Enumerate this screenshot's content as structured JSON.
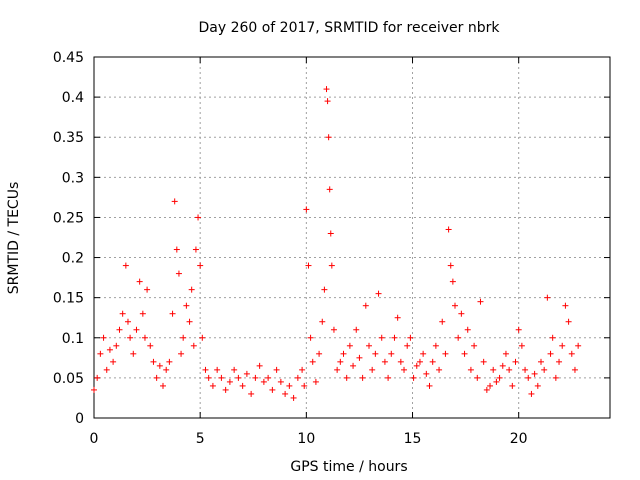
{
  "chart_data": {
    "type": "scatter",
    "title": "Day 260 of 2017, SRMTID for receiver nbrk",
    "xlabel": "GPS time / hours",
    "ylabel": "SRMTID / TECUs",
    "xlim": [
      0,
      24.3
    ],
    "ylim": [
      0,
      0.45
    ],
    "x_ticks": [
      0,
      5,
      10,
      15,
      20
    ],
    "x_tick_labels": [
      "0",
      "5",
      "10",
      "15",
      "20"
    ],
    "y_ticks": [
      0,
      0.05,
      0.1,
      0.15,
      0.2,
      0.25,
      0.3,
      0.35,
      0.4,
      0.45
    ],
    "y_tick_labels": [
      "0",
      "0.05",
      "0.1",
      "0.15",
      "0.2",
      "0.25",
      "0.3",
      "0.35",
      "0.4",
      "0.45"
    ],
    "grid": true,
    "marker": "+",
    "marker_color": "#ff0000",
    "series": [
      {
        "name": "SRMTID",
        "x": [
          0.0,
          0.15,
          0.3,
          0.45,
          0.6,
          0.75,
          0.9,
          1.05,
          1.2,
          1.35,
          1.5,
          1.6,
          1.7,
          1.85,
          2.0,
          2.15,
          2.3,
          2.4,
          2.5,
          2.65,
          2.8,
          2.95,
          3.1,
          3.25,
          3.4,
          3.55,
          3.7,
          3.8,
          3.9,
          4.0,
          4.1,
          4.2,
          4.35,
          4.5,
          4.6,
          4.7,
          4.8,
          4.9,
          5.0,
          5.1,
          5.25,
          5.4,
          5.6,
          5.8,
          6.0,
          6.2,
          6.4,
          6.6,
          6.8,
          7.0,
          7.2,
          7.4,
          7.6,
          7.8,
          8.0,
          8.2,
          8.4,
          8.6,
          8.8,
          9.0,
          9.2,
          9.4,
          9.6,
          9.8,
          9.9,
          10.0,
          10.1,
          10.2,
          10.3,
          10.45,
          10.6,
          10.75,
          10.85,
          10.95,
          11.0,
          11.05,
          11.1,
          11.15,
          11.2,
          11.3,
          11.45,
          11.6,
          11.75,
          11.9,
          12.05,
          12.2,
          12.35,
          12.5,
          12.65,
          12.8,
          12.95,
          13.1,
          13.25,
          13.4,
          13.55,
          13.7,
          13.85,
          14.0,
          14.15,
          14.3,
          14.45,
          14.6,
          14.75,
          14.9,
          15.05,
          15.2,
          15.35,
          15.5,
          15.65,
          15.8,
          15.95,
          16.1,
          16.25,
          16.4,
          16.55,
          16.7,
          16.8,
          16.9,
          17.0,
          17.15,
          17.3,
          17.45,
          17.6,
          17.75,
          17.9,
          18.05,
          18.2,
          18.35,
          18.5,
          18.65,
          18.8,
          18.95,
          19.1,
          19.25,
          19.4,
          19.55,
          19.7,
          19.85,
          20.0,
          20.15,
          20.3,
          20.45,
          20.6,
          20.75,
          20.9,
          21.05,
          21.2,
          21.35,
          21.5,
          21.6,
          21.75,
          21.9,
          22.05,
          22.2,
          22.35,
          22.5,
          22.65,
          22.8
        ],
        "y": [
          0.035,
          0.05,
          0.08,
          0.1,
          0.06,
          0.085,
          0.07,
          0.09,
          0.11,
          0.13,
          0.19,
          0.12,
          0.1,
          0.08,
          0.11,
          0.17,
          0.13,
          0.1,
          0.16,
          0.09,
          0.07,
          0.05,
          0.065,
          0.04,
          0.06,
          0.07,
          0.13,
          0.27,
          0.21,
          0.18,
          0.08,
          0.1,
          0.14,
          0.12,
          0.16,
          0.09,
          0.21,
          0.25,
          0.19,
          0.1,
          0.06,
          0.05,
          0.04,
          0.06,
          0.05,
          0.035,
          0.045,
          0.06,
          0.05,
          0.04,
          0.055,
          0.03,
          0.05,
          0.065,
          0.045,
          0.05,
          0.035,
          0.06,
          0.045,
          0.03,
          0.04,
          0.025,
          0.05,
          0.06,
          0.04,
          0.26,
          0.19,
          0.1,
          0.07,
          0.045,
          0.08,
          0.12,
          0.16,
          0.41,
          0.395,
          0.35,
          0.285,
          0.23,
          0.19,
          0.11,
          0.06,
          0.07,
          0.08,
          0.05,
          0.09,
          0.065,
          0.11,
          0.075,
          0.05,
          0.14,
          0.09,
          0.06,
          0.08,
          0.155,
          0.1,
          0.07,
          0.05,
          0.08,
          0.1,
          0.125,
          0.07,
          0.06,
          0.09,
          0.1,
          0.05,
          0.065,
          0.07,
          0.08,
          0.055,
          0.04,
          0.07,
          0.09,
          0.06,
          0.12,
          0.08,
          0.235,
          0.19,
          0.17,
          0.14,
          0.1,
          0.13,
          0.08,
          0.11,
          0.06,
          0.09,
          0.05,
          0.145,
          0.07,
          0.035,
          0.04,
          0.06,
          0.045,
          0.05,
          0.065,
          0.08,
          0.06,
          0.04,
          0.07,
          0.11,
          0.09,
          0.06,
          0.05,
          0.03,
          0.055,
          0.04,
          0.07,
          0.06,
          0.15,
          0.08,
          0.1,
          0.05,
          0.07,
          0.09,
          0.14,
          0.12,
          0.08,
          0.06,
          0.09
        ]
      }
    ]
  }
}
